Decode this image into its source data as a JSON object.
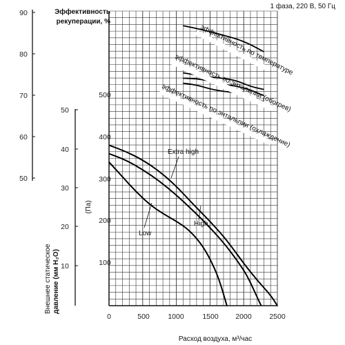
{
  "header": {
    "power_spec": "1 фаза, 220 В, 50 Гц"
  },
  "axes": {
    "efficiency_title_line1": "Эффективность",
    "efficiency_title_line2": "рекуперации, %",
    "efficiency_ticks": [
      "90",
      "80",
      "70",
      "60",
      "50"
    ],
    "pressure_mm_ticks": [
      "50",
      "40",
      "30",
      "20",
      "10"
    ],
    "pressure_mm_title_line1": "Внешнее статическое",
    "pressure_mm_title_line2": "давление (мм H₂O)",
    "pa_ticks": [
      "500",
      "400",
      "300",
      "200",
      "100"
    ],
    "pa_unit": "(Па)",
    "x_ticks": [
      "0",
      "500",
      "1000",
      "1500",
      "2000",
      "2500"
    ],
    "x_title": "Расход воздуха, м³/час"
  },
  "chart_data": {
    "type": "line",
    "title": "",
    "power_spec": "1 фаза, 220 В, 50 Гц",
    "xlabel": "Расход воздуха, м³/час",
    "ylabel_left_efficiency": "Эффективность рекуперации, %",
    "ylabel_left_pressure_mm": "Внешнее статическое давление (мм H2O)",
    "ylabel_pressure_pa": "(Па)",
    "xlim": [
      0,
      2500
    ],
    "ylim_pa": [
      0,
      500
    ],
    "efficiency_axis_range": [
      50,
      90
    ],
    "pressure_mm_axis_range": [
      0,
      50
    ],
    "grid": true,
    "pressure_series": [
      {
        "name": "Extra high",
        "x": [
          0,
          250,
          500,
          750,
          1000,
          1250,
          1500,
          1750,
          2000,
          2200,
          2400,
          2500
        ],
        "y": [
          380,
          365,
          345,
          318,
          283,
          240,
          200,
          155,
          100,
          60,
          25,
          0
        ]
      },
      {
        "name": "High",
        "x": [
          0,
          250,
          500,
          750,
          1000,
          1250,
          1500,
          1750,
          2000,
          2100,
          2200,
          2260
        ],
        "y": [
          360,
          345,
          322,
          295,
          262,
          225,
          185,
          140,
          85,
          55,
          20,
          0
        ]
      },
      {
        "name": "Low",
        "x": [
          0,
          200,
          400,
          600,
          800,
          1000,
          1200,
          1400,
          1550,
          1650,
          1750
        ],
        "y": [
          340,
          305,
          270,
          240,
          218,
          200,
          178,
          140,
          95,
          55,
          0
        ]
      }
    ],
    "efficiency_series": [
      {
        "name": "эффективность по температуре",
        "x": [
          1100,
          1400,
          1700,
          2000,
          2300
        ],
        "y": [
          86.8,
          85.8,
          84.5,
          83.1,
          80.5
        ]
      },
      {
        "name": "эффективность по энтальпии (обогрев)",
        "x": [
          1100,
          1300,
          1500,
          1700,
          1900,
          2100,
          2300
        ],
        "y": [
          74.1,
          74,
          73.4,
          72.6,
          72.2,
          71.3,
          69.9
        ]
      },
      {
        "name": "эффективность по энтальпии (охлаждение)",
        "x": [
          1100,
          1300,
          1500,
          1700,
          1900,
          2100,
          2300
        ],
        "y": [
          72.9,
          72.5,
          71.5,
          70.9,
          70.6,
          69.7,
          68.4
        ]
      },
      {
        "name": "",
        "x": [
          1100,
          1300,
          1500,
          1700,
          1900,
          2100,
          2300
        ],
        "y": [
          75.4,
          74.9,
          74.4,
          74.1,
          73.5,
          72.1,
          71.4
        ]
      }
    ],
    "series_labels": {
      "extra_high": "Extra high",
      "high": "High",
      "low": "Low",
      "eff_temp": "эффективность по температуре",
      "eff_heat": "эффективность по энтальпии (обогрев)",
      "eff_cool": "эффективность по энтальпии (охлаждение)"
    }
  }
}
